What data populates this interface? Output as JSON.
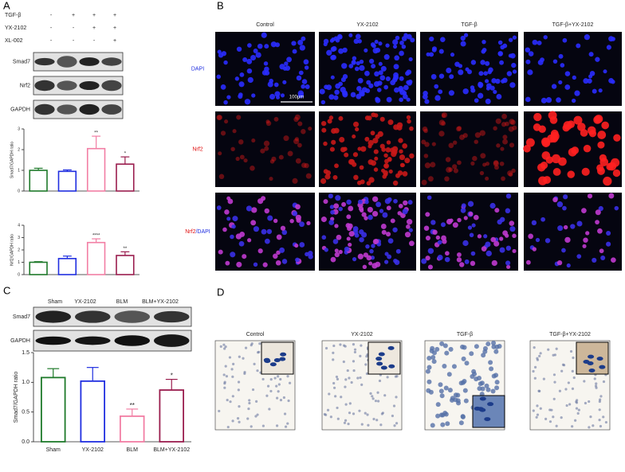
{
  "panel_labels": [
    "A",
    "B",
    "C",
    "D"
  ],
  "panel_a": {
    "treatments": [
      {
        "name": "TGF-β",
        "signs": [
          "-",
          "+",
          "+",
          "+"
        ]
      },
      {
        "name": "YX-2102",
        "signs": [
          "-",
          "-",
          "+",
          "+"
        ]
      },
      {
        "name": "XL-002",
        "signs": [
          "-",
          "-",
          "-",
          "+"
        ]
      }
    ],
    "blots": [
      "Smad7",
      "Nrf2",
      "GAPDH"
    ]
  },
  "panel_b": {
    "columns": [
      "Control",
      "YX-2102",
      "TGF-β",
      "TGF-β+YX-2102"
    ],
    "rows": [
      [
        "DAPI"
      ],
      [
        "Nrf2"
      ],
      [
        "Nrf2",
        "/DAPI"
      ]
    ],
    "scale_bar": "100μm"
  },
  "panel_c": {
    "columns": [
      "Sham",
      "YX-2102",
      "BLM",
      "BLM+YX-2102"
    ],
    "blots": [
      "Smad7",
      "GAPDH"
    ]
  },
  "panel_d": {
    "columns": [
      "Control",
      "YX-2102",
      "TGF-β",
      "TGF-β+YX-2102"
    ]
  },
  "chart_data": [
    {
      "type": "bar",
      "ylabel": "Smad7/GAPDH ratio",
      "categories": [
        null,
        null,
        null,
        null
      ],
      "values": [
        1.0,
        0.95,
        2.05,
        1.3
      ],
      "errors": [
        0.1,
        0.07,
        0.6,
        0.35
      ],
      "significance": [
        null,
        null,
        "**",
        "*"
      ],
      "colors": [
        "#1e7a2a",
        "#1f2ee0",
        "#f27ea4",
        "#9a1d4e"
      ],
      "ylim": [
        0,
        3
      ],
      "yticks": [
        0,
        1,
        2,
        3
      ]
    },
    {
      "type": "bar",
      "ylabel": "Nrf2/GAPDH ratio",
      "categories": [
        null,
        null,
        null,
        null
      ],
      "values": [
        1.0,
        1.3,
        2.6,
        1.55
      ],
      "errors": [
        0.05,
        0.2,
        0.3,
        0.3
      ],
      "significance": [
        null,
        null,
        "****",
        "**"
      ],
      "colors": [
        "#1e7a2a",
        "#1f2ee0",
        "#f27ea4",
        "#9a1d4e"
      ],
      "ylim": [
        0,
        4
      ],
      "yticks": [
        0,
        1,
        2,
        3,
        4
      ]
    },
    {
      "type": "bar",
      "ylabel": "Smad7/GAPDH ratio",
      "categories": [
        "Sham",
        "YX-2102",
        "BLM",
        "BLM+YX-2102"
      ],
      "values": [
        1.08,
        1.02,
        0.43,
        0.87
      ],
      "errors": [
        0.15,
        0.23,
        0.12,
        0.18
      ],
      "significance": [
        null,
        null,
        "**",
        "*"
      ],
      "colors": [
        "#1e7a2a",
        "#1f2ee0",
        "#f27ea4",
        "#9a1d4e"
      ],
      "ylim": [
        0,
        1.5
      ],
      "yticks": [
        {
          "value": 0,
          "label": "0.0"
        },
        {
          "value": 0.5,
          "label": "0.5"
        },
        {
          "value": 1,
          "label": "1.0"
        },
        {
          "value": 1.5,
          "label": "1.5"
        }
      ]
    }
  ]
}
